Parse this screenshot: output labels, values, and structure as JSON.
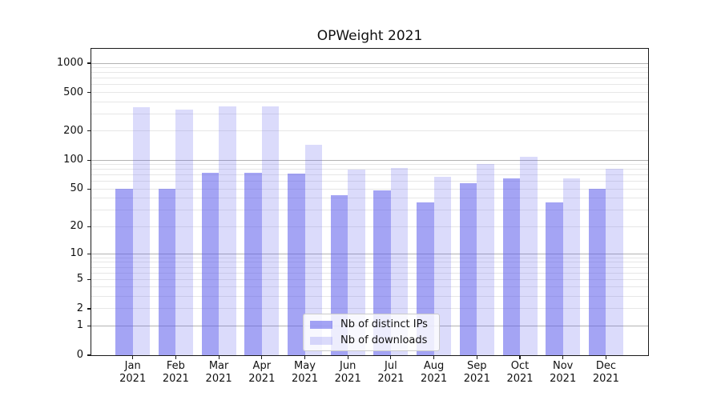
{
  "title": "OPWeight 2021",
  "chart_data": {
    "type": "bar",
    "title": "OPWeight 2021",
    "categories": [
      "Jan 2021",
      "Feb 2021",
      "Mar 2021",
      "Apr 2021",
      "May 2021",
      "Jun 2021",
      "Jul 2021",
      "Aug 2021",
      "Sep 2021",
      "Oct 2021",
      "Nov 2021",
      "Dec 2021"
    ],
    "series": [
      {
        "name": "Nb of distinct IPs",
        "color": "#5a5aeb",
        "alpha": 0.55,
        "values": [
          50,
          50,
          74,
          74,
          72,
          43,
          48,
          36,
          57,
          65,
          36,
          50
        ]
      },
      {
        "name": "Nb of downloads",
        "color": "#5a5aeb",
        "alpha": 0.22,
        "values": [
          352,
          335,
          361,
          361,
          144,
          80,
          83,
          67,
          91,
          109,
          64,
          81
        ]
      }
    ],
    "xlabel": "",
    "ylabel": "",
    "yscale": "log1p",
    "ylim": [
      0,
      1400
    ],
    "y_ticks": [
      0,
      1,
      2,
      5,
      10,
      20,
      50,
      100,
      200,
      500,
      1000
    ],
    "y_tick_labels": [
      "0",
      "1",
      "2",
      "5",
      "10",
      "20",
      "50",
      "100",
      "200",
      "500",
      "1000"
    ],
    "grid": true,
    "legend": {
      "position": "lower-center",
      "items": [
        "Nb of distinct IPs",
        "Nb of downloads"
      ]
    },
    "colors": {
      "bar_base": "#5a5aeb",
      "major_grid": "#b3b3b3",
      "minor_grid": "#e7e7e7",
      "axis": "#1a1a1a",
      "background": "#ffffff"
    }
  }
}
